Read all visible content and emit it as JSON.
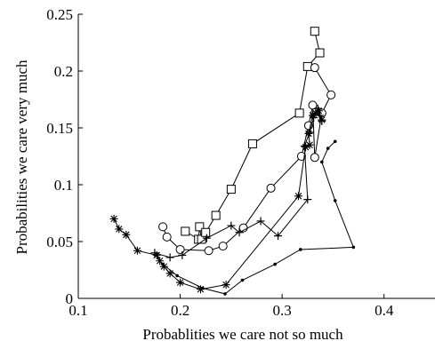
{
  "chart_data": {
    "type": "line",
    "title": "",
    "xlabel": "Probablities we care not so much",
    "ylabel": "Probabilities we care very much",
    "xlim": [
      0.1,
      0.45
    ],
    "ylim": [
      0,
      0.25
    ],
    "xticks": [
      0.1,
      0.2,
      0.3,
      0.4
    ],
    "xtick_labels": [
      "0.1",
      "0.2",
      "0.3",
      "0.4"
    ],
    "yticks": [
      0,
      0.05,
      0.1,
      0.15,
      0.2,
      0.25
    ],
    "ytick_labels": [
      "0",
      "0.05",
      "0.1",
      "0.15",
      "0.2",
      "0.25"
    ],
    "grid": false,
    "legend": "none",
    "line_color": "#000000",
    "series": [
      {
        "marker": "square",
        "x": [
          0.205,
          0.218,
          0.219,
          0.221,
          0.225,
          0.235,
          0.25,
          0.271,
          0.317,
          0.325,
          0.337,
          0.332
        ],
        "y": [
          0.059,
          0.052,
          0.063,
          0.052,
          0.058,
          0.073,
          0.096,
          0.136,
          0.163,
          0.204,
          0.216,
          0.235
        ]
      },
      {
        "marker": "circle",
        "x": [
          0.183,
          0.187,
          0.2,
          0.228,
          0.242,
          0.262,
          0.289,
          0.319,
          0.326,
          0.33,
          0.332,
          0.339,
          0.348,
          0.332
        ],
        "y": [
          0.063,
          0.054,
          0.043,
          0.042,
          0.046,
          0.062,
          0.097,
          0.125,
          0.152,
          0.17,
          0.124,
          0.163,
          0.179,
          0.203
        ]
      },
      {
        "marker": "plus",
        "x": [
          0.175,
          0.19,
          0.202,
          0.226,
          0.25,
          0.258,
          0.279,
          0.296,
          0.325,
          0.322,
          0.327,
          0.331,
          0.335,
          0.337,
          0.339
        ],
        "y": [
          0.04,
          0.036,
          0.038,
          0.053,
          0.064,
          0.058,
          0.068,
          0.055,
          0.087,
          0.134,
          0.146,
          0.159,
          0.167,
          0.161,
          0.156
        ]
      },
      {
        "marker": "asterisk",
        "x": [
          0.135,
          0.14,
          0.147,
          0.158,
          0.177,
          0.18,
          0.184,
          0.19,
          0.2,
          0.22,
          0.245,
          0.316,
          0.323,
          0.327,
          0.326,
          0.33,
          0.333,
          0.336,
          0.339
        ],
        "y": [
          0.07,
          0.061,
          0.056,
          0.042,
          0.038,
          0.033,
          0.028,
          0.022,
          0.014,
          0.008,
          0.012,
          0.09,
          0.133,
          0.135,
          0.145,
          0.161,
          0.163,
          0.165,
          0.157
        ]
      },
      {
        "marker": "dot",
        "x": [
          0.183,
          0.197,
          0.222,
          0.244,
          0.261,
          0.293,
          0.318,
          0.37,
          0.352,
          0.339,
          0.345,
          0.352
        ],
        "y": [
          0.03,
          0.02,
          0.009,
          0.004,
          0.016,
          0.03,
          0.043,
          0.045,
          0.086,
          0.12,
          0.132,
          0.138
        ]
      }
    ]
  }
}
